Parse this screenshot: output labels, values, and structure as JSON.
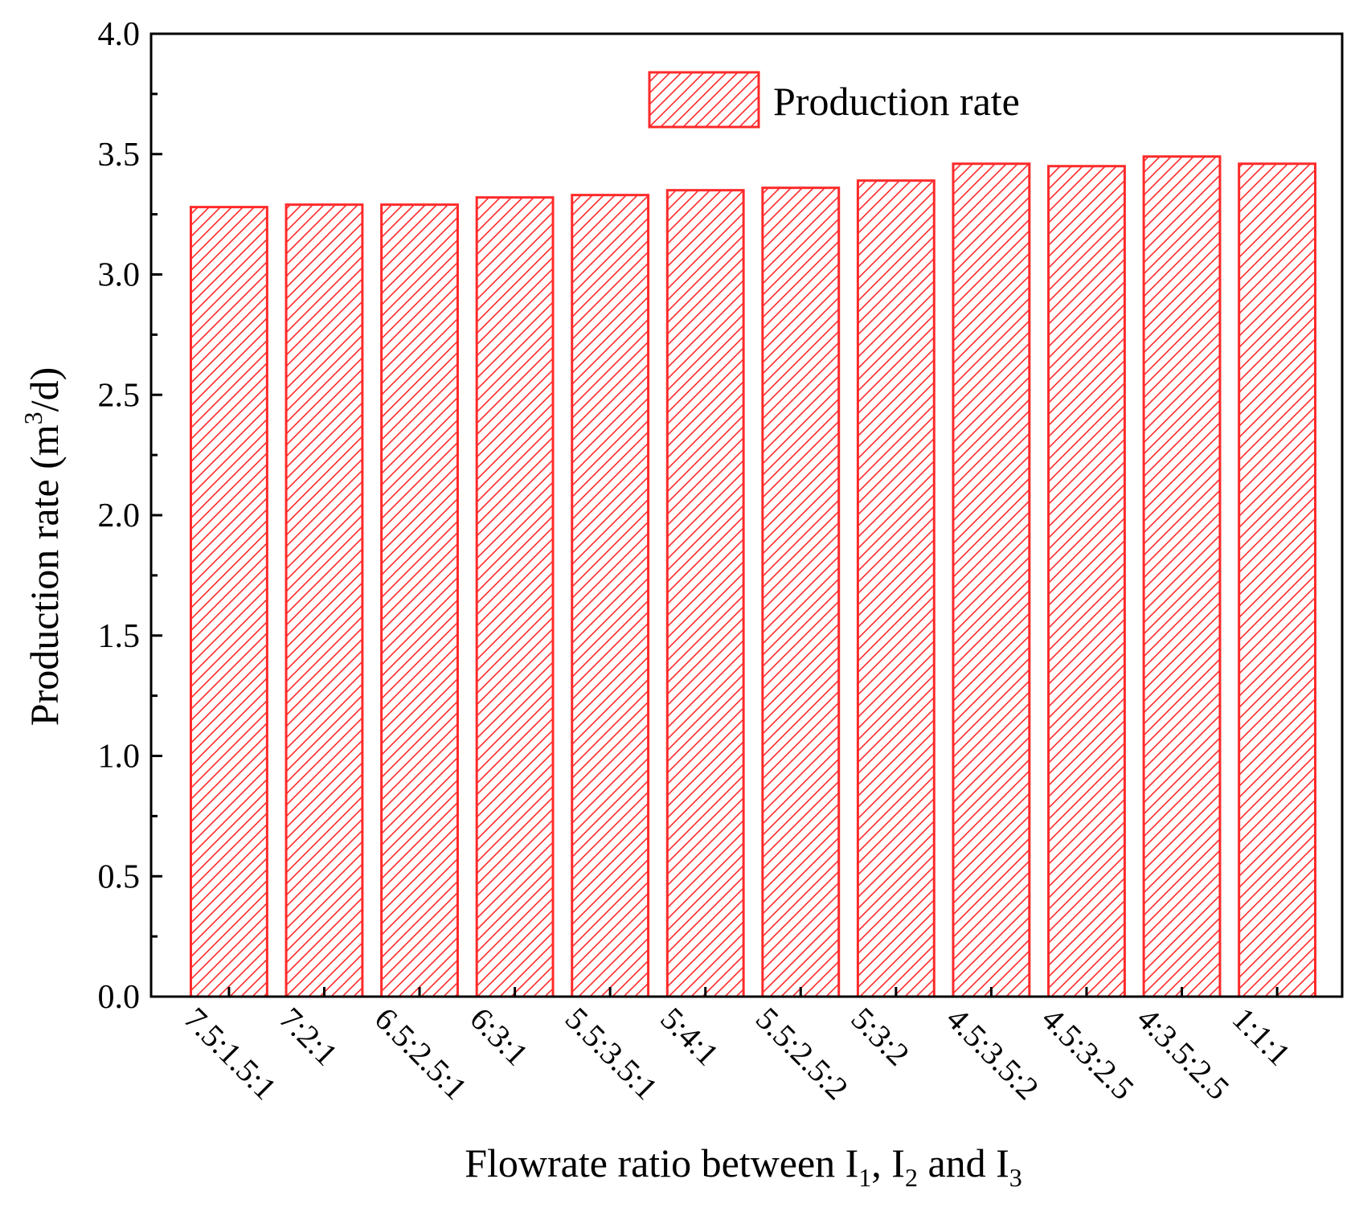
{
  "chart_data": {
    "type": "bar",
    "categories": [
      "7.5:1.5:1",
      "7:2:1",
      "6.5:2.5:1",
      "6:3:1",
      "5.5:3.5:1",
      "5:4:1",
      "5.5:2.5:2",
      "5:3:2",
      "4.5:3.5:2",
      "4.5:3:2.5",
      "4:3.5:2.5",
      "1:1:1"
    ],
    "series": [
      {
        "name": "Production rate",
        "values": [
          3.28,
          3.29,
          3.29,
          3.32,
          3.33,
          3.35,
          3.36,
          3.39,
          3.46,
          3.45,
          3.49,
          3.46
        ]
      }
    ],
    "title": "",
    "xlabel": "Flowrate ratio between I1, I2 and I3",
    "xlabel_parts": {
      "text": "Flowrate ratio between I",
      "sub1": "1",
      "mid1": ", I",
      "sub2": "2",
      "mid2": " and I",
      "sub3": "3"
    },
    "ylabel": "Production rate (m3/d)",
    "ylabel_parts": {
      "text": "Production rate (m",
      "sup": "3",
      "tail": "/d)"
    },
    "ylim": [
      0,
      4.0
    ],
    "yticks": [
      "0.0",
      "0.5",
      "1.0",
      "1.5",
      "2.0",
      "2.5",
      "3.0",
      "3.5",
      "4.0"
    ],
    "grid": false,
    "legend_position": "top-right",
    "colors": {
      "bar": "#ff2a2a",
      "axis": "#000000"
    }
  }
}
